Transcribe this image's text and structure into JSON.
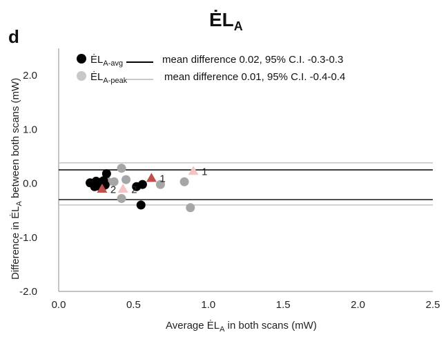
{
  "chart_data": {
    "type": "scatter",
    "title": "ĖL",
    "title_sub": "A",
    "panel_label": "d",
    "xlabel": "Average ĖL",
    "xlabel_sub": "A",
    "xlabel_suffix": " in both scans (mW)",
    "ylabel": "Difference in ĖL",
    "ylabel_sub": "A",
    "ylabel_suffix": " between both scans (mW)",
    "xlim": [
      0.0,
      2.5
    ],
    "ylim": [
      -2.0,
      2.5
    ],
    "xticks": [
      "0.0",
      "0.5",
      "1.0",
      "1.5",
      "2.0",
      "2.5"
    ],
    "xtick_values": [
      0.0,
      0.5,
      1.0,
      1.5,
      2.0,
      2.5
    ],
    "yticks": [
      "-2.0",
      "-1.0",
      "0.0",
      "1.0",
      "2.0"
    ],
    "ytick_values": [
      -2.0,
      -1.0,
      0.0,
      1.0,
      2.0
    ],
    "grid": false,
    "legend_position": "top-left",
    "series": [
      {
        "name": "ĖL",
        "name_sub": "A-avg",
        "color": "#000000",
        "marker": "circle",
        "points": [
          {
            "x": 0.21,
            "y": 0.01
          },
          {
            "x": 0.23,
            "y": 0.0
          },
          {
            "x": 0.24,
            "y": -0.06
          },
          {
            "x": 0.25,
            "y": 0.04
          },
          {
            "x": 0.26,
            "y": -0.02
          },
          {
            "x": 0.27,
            "y": -0.05
          },
          {
            "x": 0.28,
            "y": 0.02
          },
          {
            "x": 0.3,
            "y": 0.05
          },
          {
            "x": 0.31,
            "y": -0.03
          },
          {
            "x": 0.32,
            "y": 0.18
          },
          {
            "x": 0.52,
            "y": -0.06
          },
          {
            "x": 0.55,
            "y": -0.4
          },
          {
            "x": 0.56,
            "y": -0.02
          }
        ],
        "mean_line": 0.25,
        "ci_line": -0.3,
        "line_color": "#000000",
        "legend_line": "mean difference 0.02, 95% C.I. -0.3-0.3"
      },
      {
        "name": "ĖL",
        "name_sub": "A-peak",
        "color": "#a6a6a6",
        "marker": "circle",
        "points": [
          {
            "x": 0.29,
            "y": -0.08
          },
          {
            "x": 0.33,
            "y": 0.03
          },
          {
            "x": 0.37,
            "y": 0.03
          },
          {
            "x": 0.42,
            "y": 0.28
          },
          {
            "x": 0.42,
            "y": -0.28
          },
          {
            "x": 0.45,
            "y": 0.07
          },
          {
            "x": 0.68,
            "y": -0.02
          },
          {
            "x": 0.84,
            "y": 0.03
          },
          {
            "x": 0.88,
            "y": -0.45
          }
        ],
        "mean_line": 0.38,
        "ci_line": -0.4,
        "line_color": "#c8c8c8",
        "legend_line": "mean difference 0.01, 95% C.I. -0.4-0.4"
      }
    ],
    "highlights": [
      {
        "x": 0.29,
        "y": -0.1,
        "color": "#c0504d",
        "marker": "triangle",
        "label": "2"
      },
      {
        "x": 0.62,
        "y": 0.1,
        "color": "#c0504d",
        "marker": "triangle",
        "label": "1"
      },
      {
        "x": 0.43,
        "y": -0.1,
        "color": "#f2c4c4",
        "marker": "triangle",
        "label": "2"
      },
      {
        "x": 0.9,
        "y": 0.23,
        "color": "#f2c4c4",
        "marker": "triangle",
        "label": "1"
      }
    ]
  }
}
